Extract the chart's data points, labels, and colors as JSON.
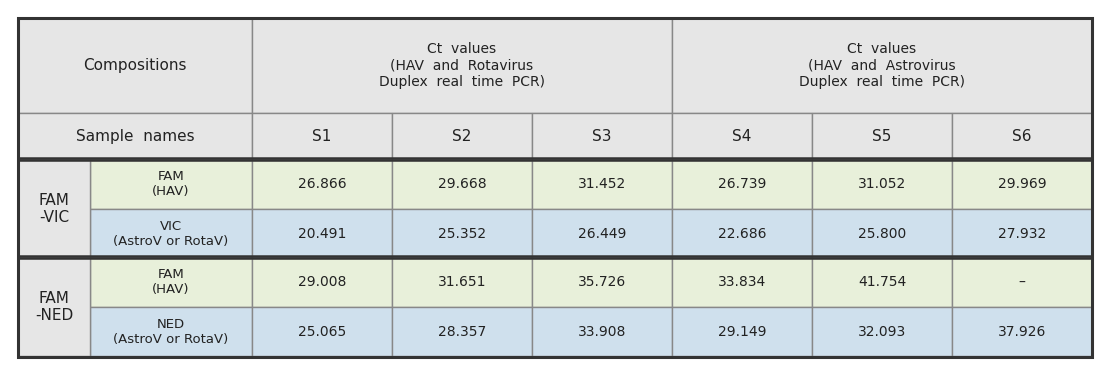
{
  "rows": [
    {
      "group_label": "FAM\n-VIC",
      "sub_label": "FAM\n(HAV)",
      "values": [
        "26.866",
        "29.668",
        "31.452",
        "26.739",
        "31.052",
        "29.969"
      ],
      "bg": "green"
    },
    {
      "group_label": "",
      "sub_label": "VIC\n(AstroV or RotaV)",
      "values": [
        "20.491",
        "25.352",
        "26.449",
        "22.686",
        "25.800",
        "27.932"
      ],
      "bg": "blue"
    },
    {
      "group_label": "FAM\n-NED",
      "sub_label": "FAM\n(HAV)",
      "values": [
        "29.008",
        "31.651",
        "35.726",
        "33.834",
        "41.754",
        "–"
      ],
      "bg": "green"
    },
    {
      "group_label": "",
      "sub_label": "NED\n(AstroV or RotaV)",
      "values": [
        "25.065",
        "28.357",
        "33.908",
        "29.149",
        "32.093",
        "37.926"
      ],
      "bg": "blue"
    }
  ],
  "header_bg": "#e6e6e6",
  "green_bg": "#e8f0da",
  "blue_bg": "#cfe0ed",
  "border_thin": "#888888",
  "border_thick": "#333333",
  "text_color": "#222222",
  "white": "#ffffff"
}
